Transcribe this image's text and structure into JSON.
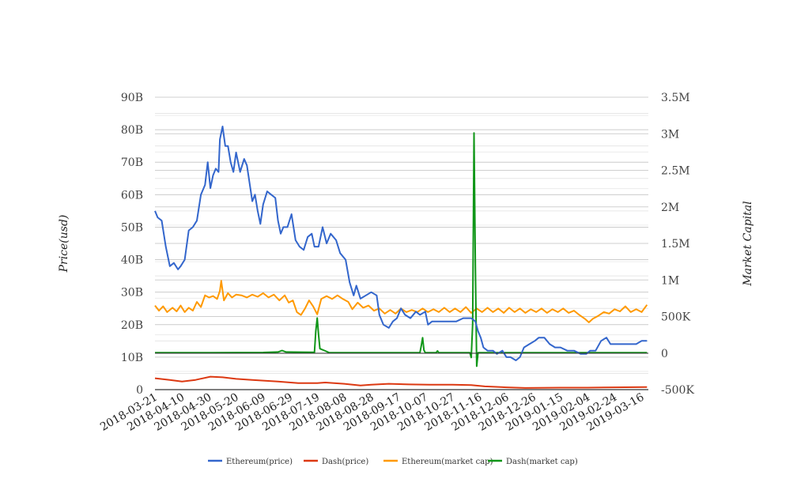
{
  "chart_data": {
    "type": "line",
    "title": "",
    "xlabel": "",
    "ylabel": "Price(usd)",
    "y2label": "Market Capital",
    "ylim": [
      0,
      90
    ],
    "y2lim": [
      -500,
      3500
    ],
    "yticks": [
      "0",
      "10B",
      "20B",
      "30B",
      "40B",
      "50B",
      "60B",
      "70B",
      "80B",
      "90B"
    ],
    "y2ticks": [
      "-500K",
      "0",
      "500K",
      "1M",
      "1.5M",
      "2M",
      "2.5M",
      "3M",
      "3.5M"
    ],
    "xticks": [
      "2018-03-21",
      "2018-04-10",
      "2018-04-30",
      "2018-05-20",
      "2018-06-09",
      "2018-06-29",
      "2018-07-19",
      "2018-08-08",
      "2018-08-28",
      "2018-09-17",
      "2018-10-07",
      "2018-10-27",
      "2018-11-16",
      "2018-12-06",
      "2018-12-26",
      "2019-01-15",
      "2019-02-04",
      "2019-02-24",
      "2019-03-16"
    ],
    "x_start": "2018-03-21",
    "x_end": "2019-03-21",
    "grid": true,
    "legend_position": "bottom",
    "series": [
      {
        "name": "Ethereum(price)",
        "axis": "left",
        "unit": "B",
        "color": "#3366cc",
        "points": [
          [
            "2018-03-21",
            55
          ],
          [
            "2018-03-23",
            53
          ],
          [
            "2018-03-26",
            52
          ],
          [
            "2018-03-29",
            44
          ],
          [
            "2018-04-01",
            38
          ],
          [
            "2018-04-04",
            39
          ],
          [
            "2018-04-07",
            37
          ],
          [
            "2018-04-09",
            38
          ],
          [
            "2018-04-12",
            40
          ],
          [
            "2018-04-15",
            49
          ],
          [
            "2018-04-18",
            50
          ],
          [
            "2018-04-21",
            52
          ],
          [
            "2018-04-24",
            60
          ],
          [
            "2018-04-27",
            63
          ],
          [
            "2018-04-29",
            70
          ],
          [
            "2018-05-01",
            62
          ],
          [
            "2018-05-03",
            66
          ],
          [
            "2018-05-05",
            68
          ],
          [
            "2018-05-07",
            67
          ],
          [
            "2018-05-08",
            77
          ],
          [
            "2018-05-10",
            81
          ],
          [
            "2018-05-12",
            75
          ],
          [
            "2018-05-14",
            75
          ],
          [
            "2018-05-16",
            70
          ],
          [
            "2018-05-18",
            67
          ],
          [
            "2018-05-20",
            73
          ],
          [
            "2018-05-23",
            67
          ],
          [
            "2018-05-26",
            71
          ],
          [
            "2018-05-28",
            69
          ],
          [
            "2018-06-01",
            58
          ],
          [
            "2018-06-03",
            60
          ],
          [
            "2018-06-05",
            55
          ],
          [
            "2018-06-07",
            51
          ],
          [
            "2018-06-09",
            57
          ],
          [
            "2018-06-12",
            61
          ],
          [
            "2018-06-15",
            60
          ],
          [
            "2018-06-18",
            59
          ],
          [
            "2018-06-20",
            52
          ],
          [
            "2018-06-22",
            48
          ],
          [
            "2018-06-24",
            50
          ],
          [
            "2018-06-27",
            50
          ],
          [
            "2018-06-30",
            54
          ],
          [
            "2018-07-03",
            46
          ],
          [
            "2018-07-06",
            44
          ],
          [
            "2018-07-09",
            43
          ],
          [
            "2018-07-12",
            47
          ],
          [
            "2018-07-15",
            48
          ],
          [
            "2018-07-17",
            44
          ],
          [
            "2018-07-20",
            44
          ],
          [
            "2018-07-23",
            50
          ],
          [
            "2018-07-26",
            45
          ],
          [
            "2018-07-29",
            48
          ],
          [
            "2018-08-02",
            46
          ],
          [
            "2018-08-05",
            42
          ],
          [
            "2018-08-09",
            40
          ],
          [
            "2018-08-12",
            33
          ],
          [
            "2018-08-15",
            29
          ],
          [
            "2018-08-17",
            32
          ],
          [
            "2018-08-20",
            28
          ],
          [
            "2018-08-24",
            29
          ],
          [
            "2018-08-28",
            30
          ],
          [
            "2018-09-01",
            29
          ],
          [
            "2018-09-03",
            23
          ],
          [
            "2018-09-06",
            20
          ],
          [
            "2018-09-10",
            19
          ],
          [
            "2018-09-13",
            21
          ],
          [
            "2018-09-16",
            22
          ],
          [
            "2018-09-19",
            25
          ],
          [
            "2018-09-22",
            23
          ],
          [
            "2018-09-26",
            22
          ],
          [
            "2018-09-30",
            24
          ],
          [
            "2018-10-03",
            23
          ],
          [
            "2018-10-07",
            24
          ],
          [
            "2018-10-09",
            20
          ],
          [
            "2018-10-12",
            21
          ],
          [
            "2018-10-16",
            21
          ],
          [
            "2018-10-20",
            21
          ],
          [
            "2018-10-25",
            21
          ],
          [
            "2018-10-30",
            21
          ],
          [
            "2018-11-04",
            22
          ],
          [
            "2018-11-10",
            22
          ],
          [
            "2018-11-13",
            21
          ],
          [
            "2018-11-15",
            18
          ],
          [
            "2018-11-17",
            16
          ],
          [
            "2018-11-19",
            13
          ],
          [
            "2018-11-22",
            12
          ],
          [
            "2018-11-26",
            12
          ],
          [
            "2018-11-29",
            11
          ],
          [
            "2018-12-03",
            12
          ],
          [
            "2018-12-06",
            10
          ],
          [
            "2018-12-09",
            10
          ],
          [
            "2018-12-13",
            9
          ],
          [
            "2018-12-16",
            10
          ],
          [
            "2018-12-19",
            13
          ],
          [
            "2018-12-23",
            14
          ],
          [
            "2018-12-27",
            15
          ],
          [
            "2018-12-30",
            16
          ],
          [
            "2019-01-03",
            16
          ],
          [
            "2019-01-07",
            14
          ],
          [
            "2019-01-11",
            13
          ],
          [
            "2019-01-15",
            13
          ],
          [
            "2019-01-20",
            12
          ],
          [
            "2019-01-25",
            12
          ],
          [
            "2019-01-30",
            11
          ],
          [
            "2019-02-03",
            11
          ],
          [
            "2019-02-06",
            12
          ],
          [
            "2019-02-10",
            12
          ],
          [
            "2019-02-14",
            15
          ],
          [
            "2019-02-18",
            16
          ],
          [
            "2019-02-21",
            14
          ],
          [
            "2019-02-26",
            14
          ],
          [
            "2019-03-02",
            14
          ],
          [
            "2019-03-07",
            14
          ],
          [
            "2019-03-12",
            14
          ],
          [
            "2019-03-16",
            15
          ],
          [
            "2019-03-20",
            15
          ]
        ]
      },
      {
        "name": "Dash(price)",
        "axis": "left",
        "unit": "B",
        "color": "#dc3912",
        "points": [
          [
            "2018-03-21",
            3.5
          ],
          [
            "2018-04-01",
            3.0
          ],
          [
            "2018-04-10",
            2.5
          ],
          [
            "2018-04-20",
            3.0
          ],
          [
            "2018-05-01",
            4.0
          ],
          [
            "2018-05-10",
            3.8
          ],
          [
            "2018-05-20",
            3.3
          ],
          [
            "2018-06-01",
            3.0
          ],
          [
            "2018-06-20",
            2.5
          ],
          [
            "2018-07-05",
            2.0
          ],
          [
            "2018-07-19",
            2.0
          ],
          [
            "2018-07-25",
            2.2
          ],
          [
            "2018-08-08",
            1.8
          ],
          [
            "2018-08-20",
            1.3
          ],
          [
            "2018-08-28",
            1.5
          ],
          [
            "2018-09-10",
            1.8
          ],
          [
            "2018-09-25",
            1.6
          ],
          [
            "2018-10-10",
            1.5
          ],
          [
            "2018-10-27",
            1.5
          ],
          [
            "2018-11-10",
            1.4
          ],
          [
            "2018-11-20",
            1.0
          ],
          [
            "2018-12-06",
            0.7
          ],
          [
            "2018-12-20",
            0.5
          ],
          [
            "2019-01-15",
            0.6
          ],
          [
            "2019-02-04",
            0.6
          ],
          [
            "2019-02-24",
            0.7
          ],
          [
            "2019-03-20",
            0.8
          ]
        ]
      },
      {
        "name": "Ethereum(market cap)",
        "axis": "right",
        "unit": "K",
        "color": "#ff9900",
        "points": [
          [
            "2018-03-21",
            650
          ],
          [
            "2018-03-24",
            580
          ],
          [
            "2018-03-27",
            640
          ],
          [
            "2018-03-30",
            560
          ],
          [
            "2018-04-03",
            620
          ],
          [
            "2018-04-06",
            570
          ],
          [
            "2018-04-09",
            650
          ],
          [
            "2018-04-12",
            560
          ],
          [
            "2018-04-15",
            620
          ],
          [
            "2018-04-18",
            580
          ],
          [
            "2018-04-21",
            700
          ],
          [
            "2018-04-24",
            630
          ],
          [
            "2018-04-27",
            790
          ],
          [
            "2018-04-30",
            760
          ],
          [
            "2018-05-03",
            780
          ],
          [
            "2018-05-06",
            740
          ],
          [
            "2018-05-08",
            850
          ],
          [
            "2018-05-09",
            990
          ],
          [
            "2018-05-11",
            720
          ],
          [
            "2018-05-14",
            820
          ],
          [
            "2018-05-17",
            760
          ],
          [
            "2018-05-20",
            800
          ],
          [
            "2018-05-24",
            790
          ],
          [
            "2018-05-28",
            760
          ],
          [
            "2018-06-01",
            800
          ],
          [
            "2018-06-05",
            770
          ],
          [
            "2018-06-09",
            820
          ],
          [
            "2018-06-13",
            760
          ],
          [
            "2018-06-17",
            800
          ],
          [
            "2018-06-21",
            720
          ],
          [
            "2018-06-25",
            790
          ],
          [
            "2018-06-28",
            690
          ],
          [
            "2018-07-01",
            720
          ],
          [
            "2018-07-04",
            560
          ],
          [
            "2018-07-07",
            520
          ],
          [
            "2018-07-10",
            610
          ],
          [
            "2018-07-13",
            720
          ],
          [
            "2018-07-16",
            640
          ],
          [
            "2018-07-19",
            530
          ],
          [
            "2018-07-22",
            740
          ],
          [
            "2018-07-26",
            780
          ],
          [
            "2018-07-30",
            740
          ],
          [
            "2018-08-03",
            790
          ],
          [
            "2018-08-07",
            740
          ],
          [
            "2018-08-11",
            700
          ],
          [
            "2018-08-14",
            600
          ],
          [
            "2018-08-18",
            690
          ],
          [
            "2018-08-22",
            620
          ],
          [
            "2018-08-26",
            650
          ],
          [
            "2018-08-30",
            580
          ],
          [
            "2018-09-03",
            610
          ],
          [
            "2018-09-07",
            540
          ],
          [
            "2018-09-11",
            590
          ],
          [
            "2018-09-15",
            540
          ],
          [
            "2018-09-19",
            610
          ],
          [
            "2018-09-23",
            560
          ],
          [
            "2018-09-27",
            590
          ],
          [
            "2018-10-01",
            560
          ],
          [
            "2018-10-05",
            610
          ],
          [
            "2018-10-09",
            560
          ],
          [
            "2018-10-13",
            600
          ],
          [
            "2018-10-17",
            560
          ],
          [
            "2018-10-21",
            620
          ],
          [
            "2018-10-25",
            560
          ],
          [
            "2018-10-29",
            610
          ],
          [
            "2018-11-02",
            560
          ],
          [
            "2018-11-06",
            630
          ],
          [
            "2018-11-10",
            550
          ],
          [
            "2018-11-14",
            610
          ],
          [
            "2018-11-18",
            560
          ],
          [
            "2018-11-22",
            620
          ],
          [
            "2018-11-26",
            560
          ],
          [
            "2018-11-30",
            610
          ],
          [
            "2018-12-04",
            550
          ],
          [
            "2018-12-08",
            620
          ],
          [
            "2018-12-12",
            560
          ],
          [
            "2018-12-16",
            610
          ],
          [
            "2018-12-20",
            550
          ],
          [
            "2018-12-24",
            600
          ],
          [
            "2018-12-28",
            560
          ],
          [
            "2019-01-01",
            610
          ],
          [
            "2019-01-05",
            550
          ],
          [
            "2019-01-09",
            600
          ],
          [
            "2019-01-13",
            560
          ],
          [
            "2019-01-17",
            610
          ],
          [
            "2019-01-21",
            550
          ],
          [
            "2019-01-25",
            580
          ],
          [
            "2019-01-29",
            520
          ],
          [
            "2019-02-02",
            470
          ],
          [
            "2019-02-05",
            420
          ],
          [
            "2019-02-08",
            470
          ],
          [
            "2019-02-12",
            510
          ],
          [
            "2019-02-16",
            560
          ],
          [
            "2019-02-20",
            540
          ],
          [
            "2019-02-24",
            600
          ],
          [
            "2019-02-28",
            570
          ],
          [
            "2019-03-04",
            640
          ],
          [
            "2019-03-08",
            560
          ],
          [
            "2019-03-12",
            600
          ],
          [
            "2019-03-16",
            560
          ],
          [
            "2019-03-20",
            660
          ]
        ]
      },
      {
        "name": "Dash(market cap)",
        "axis": "right",
        "unit": "K",
        "color": "#109618",
        "points": [
          [
            "2018-03-21",
            5
          ],
          [
            "2018-05-01",
            5
          ],
          [
            "2018-06-09",
            8
          ],
          [
            "2018-06-20",
            15
          ],
          [
            "2018-06-23",
            35
          ],
          [
            "2018-06-26",
            15
          ],
          [
            "2018-07-16",
            10
          ],
          [
            "2018-07-17",
            10
          ],
          [
            "2018-07-18",
            300
          ],
          [
            "2018-07-19",
            480
          ],
          [
            "2018-07-20",
            250
          ],
          [
            "2018-07-21",
            60
          ],
          [
            "2018-07-25",
            30
          ],
          [
            "2018-07-28",
            5
          ],
          [
            "2018-10-03",
            5
          ],
          [
            "2018-10-04",
            100
          ],
          [
            "2018-10-05",
            210
          ],
          [
            "2018-10-06",
            40
          ],
          [
            "2018-10-07",
            5
          ],
          [
            "2018-10-15",
            5
          ],
          [
            "2018-10-16",
            30
          ],
          [
            "2018-10-17",
            5
          ],
          [
            "2018-11-09",
            5
          ],
          [
            "2018-11-10",
            -60
          ],
          [
            "2018-11-11",
            400
          ],
          [
            "2018-11-12",
            3010
          ],
          [
            "2018-11-13",
            1200
          ],
          [
            "2018-11-14",
            -180
          ],
          [
            "2018-11-15",
            5
          ],
          [
            "2019-03-20",
            5
          ]
        ]
      }
    ]
  }
}
